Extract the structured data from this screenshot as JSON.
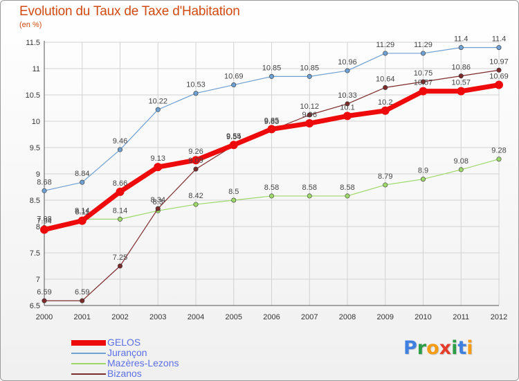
{
  "title": "Evolution du Taux de Taxe d'Habitation",
  "subtitle": "(en %)",
  "logo": {
    "text": "Proxiti",
    "letter_colors": [
      "#3f7fe0",
      "#2d9d46",
      "#f59b14",
      "#e43d2a",
      "#2d9d46",
      "#3f7fe0",
      "#f59b14"
    ]
  },
  "chart_data": {
    "type": "line",
    "x": [
      2000,
      2001,
      2002,
      2003,
      2004,
      2005,
      2006,
      2007,
      2008,
      2009,
      2010,
      2011,
      2012
    ],
    "ylim": [
      6.5,
      11.5
    ],
    "yticks": [
      6.5,
      7,
      7.5,
      8,
      8.5,
      9,
      9.5,
      10,
      10.5,
      11,
      11.5
    ],
    "ytick_labels": [
      "6.5",
      "7",
      "7.5",
      "8",
      "8.5",
      "9",
      "9.5",
      "10",
      "10.5",
      "11",
      "11.5"
    ],
    "grid": true,
    "legend_position": "bottom-left",
    "series": [
      {
        "name": "GELOS",
        "color": "#ee0a0a",
        "values": [
          7.94,
          8.11,
          8.66,
          9.13,
          9.26,
          9.55,
          9.85,
          9.96,
          10.1,
          10.2,
          10.57,
          10.57,
          10.69
        ],
        "labels": [
          "7.94",
          "8.11",
          "8.66",
          "9.13",
          "9.26",
          "9.55",
          "9.85",
          "9.96",
          "10.1",
          "10.2",
          "10.57",
          "10.57",
          "10.69"
        ]
      },
      {
        "name": "Jurançon",
        "color": "#6fa0d2",
        "values": [
          8.68,
          8.84,
          9.46,
          10.22,
          10.53,
          10.69,
          10.85,
          10.85,
          10.96,
          11.29,
          11.29,
          11.4,
          11.4
        ],
        "labels": [
          "8.68",
          "8.84",
          "9.46",
          "10.22",
          "10.53",
          "10.69",
          "10.85",
          "10.85",
          "10.96",
          "11.29",
          "11.29",
          "11.4",
          "11.4"
        ]
      },
      {
        "name": "Mazères-Lezons",
        "color": "#9ed86a",
        "values": [
          7.98,
          8.14,
          8.14,
          8.3,
          8.42,
          8.5,
          8.58,
          8.58,
          8.58,
          8.79,
          8.9,
          9.08,
          9.28
        ],
        "labels": [
          "7.98",
          "8.14",
          "8.14",
          "8.3",
          "8.42",
          "8.5",
          "8.58",
          "8.58",
          "8.58",
          "8.79",
          "8.9",
          "9.08",
          "9.28"
        ]
      },
      {
        "name": "Bizanos",
        "color": "#7d2a2a",
        "values": [
          6.59,
          6.59,
          7.25,
          8.34,
          9.09,
          9.54,
          9.83,
          10.12,
          10.33,
          10.64,
          10.75,
          10.86,
          10.97
        ],
        "labels": [
          "6.59",
          "6.59",
          "7.25",
          "8.34",
          "9.09",
          "9.54",
          "9.83",
          "10.12",
          "10.33",
          "10.64",
          "10.75",
          "10.86",
          "10.97"
        ]
      }
    ]
  }
}
